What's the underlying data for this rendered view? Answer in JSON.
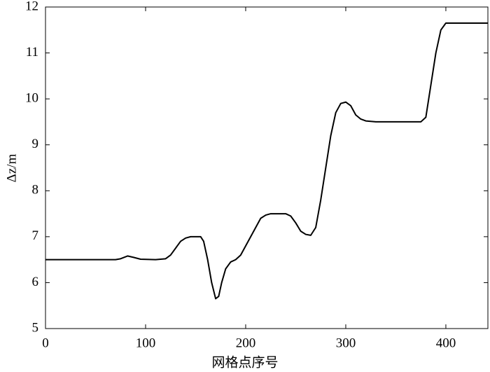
{
  "chart_data": {
    "type": "line",
    "x_label": "网格点序号",
    "y_label": "Δz/m",
    "x": [
      0,
      70,
      75,
      82,
      88,
      95,
      110,
      120,
      125,
      130,
      135,
      140,
      145,
      155,
      158,
      162,
      166,
      170,
      173,
      176,
      180,
      185,
      190,
      195,
      200,
      205,
      210,
      215,
      220,
      225,
      240,
      245,
      250,
      255,
      260,
      265,
      270,
      275,
      280,
      285,
      290,
      295,
      300,
      305,
      310,
      315,
      320,
      330,
      375,
      380,
      385,
      390,
      395,
      400,
      442
    ],
    "series": [
      {
        "color": "#000000",
        "values": [
          6.5,
          6.5,
          6.52,
          6.58,
          6.55,
          6.51,
          6.5,
          6.52,
          6.6,
          6.75,
          6.9,
          6.97,
          7.0,
          7.0,
          6.9,
          6.5,
          6.0,
          5.65,
          5.7,
          6.0,
          6.3,
          6.45,
          6.5,
          6.6,
          6.8,
          7.0,
          7.2,
          7.4,
          7.47,
          7.5,
          7.5,
          7.45,
          7.3,
          7.12,
          7.05,
          7.03,
          7.2,
          7.8,
          8.5,
          9.2,
          9.7,
          9.9,
          9.93,
          9.85,
          9.65,
          9.56,
          9.52,
          9.5,
          9.5,
          9.6,
          10.3,
          11.0,
          11.5,
          11.65,
          11.65
        ]
      }
    ],
    "xlim": [
      0,
      442
    ],
    "xticks": [
      0,
      100,
      200,
      300,
      400
    ],
    "ylim": [
      5,
      12
    ],
    "yticks": [
      5,
      6,
      7,
      8,
      9,
      10,
      11,
      12
    ]
  }
}
